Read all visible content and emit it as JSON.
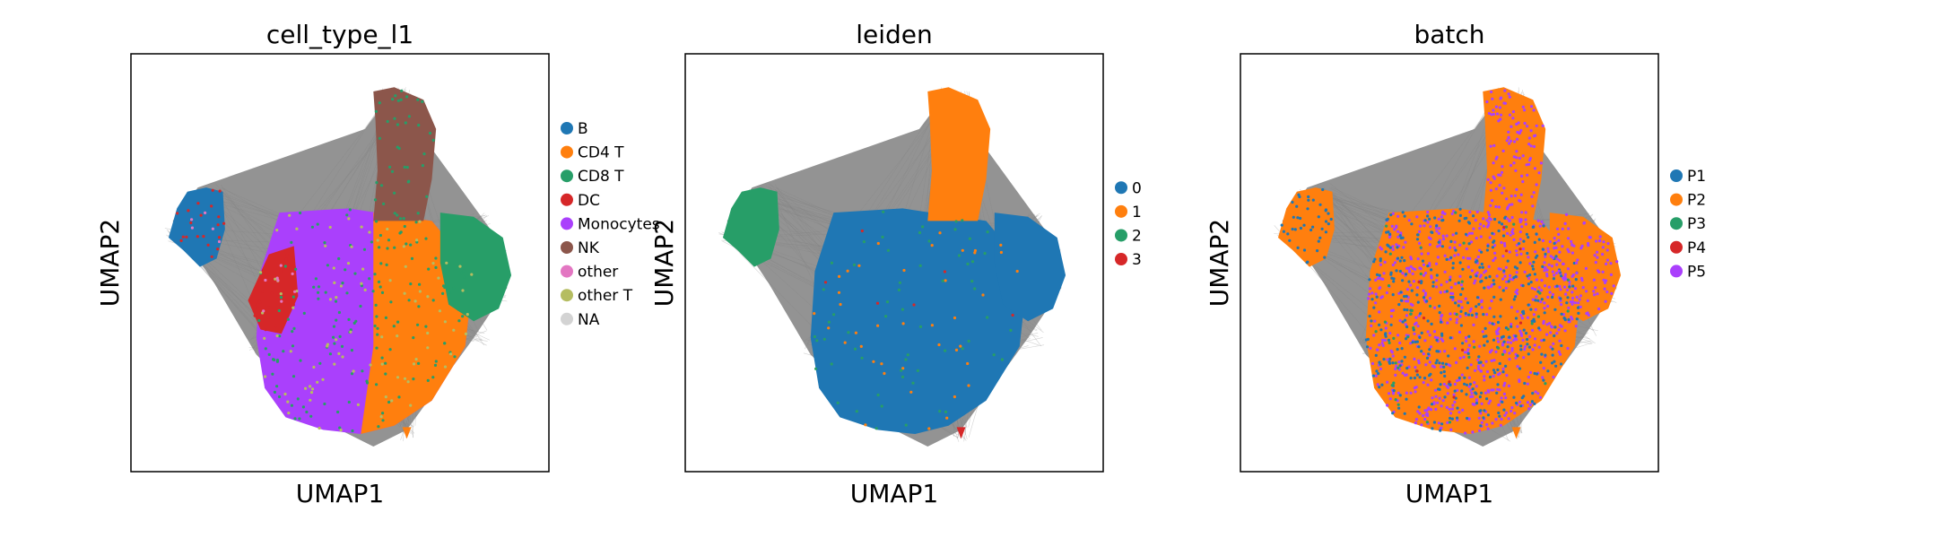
{
  "chart_data": [
    {
      "type": "scatter",
      "title": "cell_type_l1",
      "xlabel": "UMAP1",
      "ylabel": "UMAP2",
      "grid": false,
      "legend_position": "right",
      "edge_color": "#808080",
      "series": [
        {
          "name": "B",
          "color": "#1f77b4"
        },
        {
          "name": "CD4 T",
          "color": "#ff7f0e"
        },
        {
          "name": "CD8 T",
          "color": "#279e68"
        },
        {
          "name": "DC",
          "color": "#d62728"
        },
        {
          "name": "Monocytes",
          "color": "#aa40fc"
        },
        {
          "name": "NK",
          "color": "#8c564b"
        },
        {
          "name": "other",
          "color": "#e377c2"
        },
        {
          "name": "other T",
          "color": "#b5bd61"
        },
        {
          "name": "NA",
          "color": "#d3d3d3"
        }
      ]
    },
    {
      "type": "scatter",
      "title": "leiden",
      "xlabel": "UMAP1",
      "ylabel": "UMAP2",
      "grid": false,
      "legend_position": "right",
      "edge_color": "#808080",
      "series": [
        {
          "name": "0",
          "color": "#1f77b4"
        },
        {
          "name": "1",
          "color": "#ff7f0e"
        },
        {
          "name": "2",
          "color": "#279e68"
        },
        {
          "name": "3",
          "color": "#d62728"
        }
      ]
    },
    {
      "type": "scatter",
      "title": "batch",
      "xlabel": "UMAP1",
      "ylabel": "UMAP2",
      "grid": false,
      "legend_position": "right",
      "edge_color": "#808080",
      "series": [
        {
          "name": "P1",
          "color": "#1f77b4"
        },
        {
          "name": "P2",
          "color": "#ff7f0e"
        },
        {
          "name": "P3",
          "color": "#279e68"
        },
        {
          "name": "P4",
          "color": "#d62728"
        },
        {
          "name": "P5",
          "color": "#aa40fc"
        }
      ]
    }
  ]
}
